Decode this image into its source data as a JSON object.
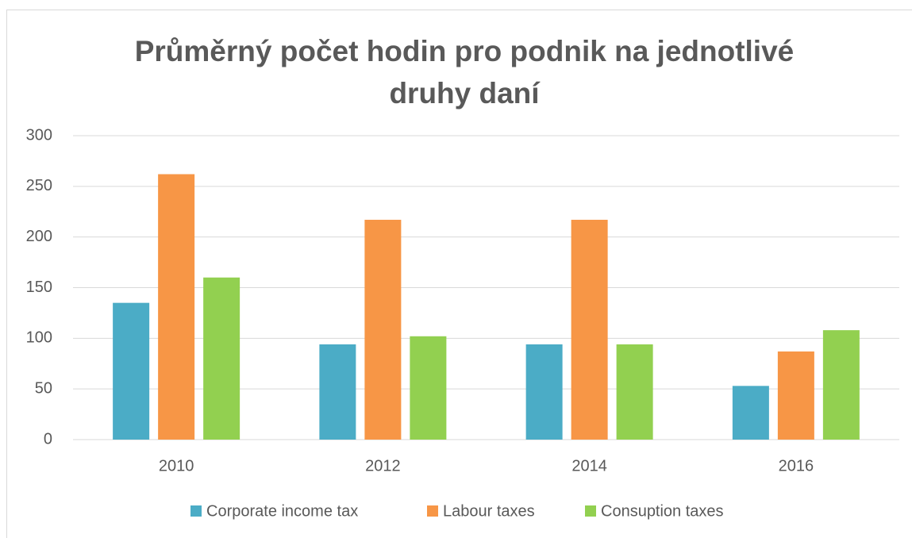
{
  "chart_data": {
    "type": "bar",
    "title": "Průměrný počet hodin pro podnik na jednotlivé druhy daní",
    "categories": [
      "2010",
      "2012",
      "2014",
      "2016"
    ],
    "series": [
      {
        "name": "Corporate income tax",
        "color": "#4bacc6",
        "values": [
          135,
          94,
          94,
          53
        ]
      },
      {
        "name": "Labour taxes",
        "color": "#f79646",
        "values": [
          262,
          217,
          217,
          87
        ]
      },
      {
        "name": "Consuption taxes",
        "color": "#92d050",
        "values": [
          160,
          102,
          94,
          108
        ]
      }
    ],
    "ylim": [
      0,
      300
    ],
    "yticks": [
      0,
      50,
      100,
      150,
      200,
      250,
      300
    ],
    "grid": true,
    "legend": "bottom"
  }
}
